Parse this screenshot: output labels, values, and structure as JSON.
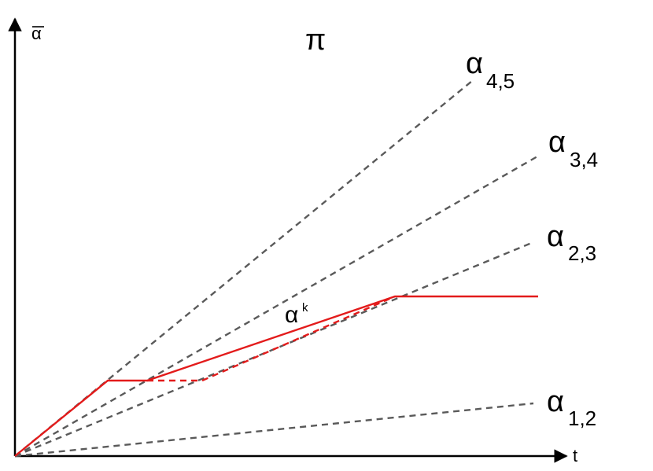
{
  "labels": {
    "y_axis": "α",
    "x_axis": "t",
    "title": "π",
    "alpha_symbol": "α",
    "alpha_k_sup": "k"
  },
  "rays": [
    {
      "sub": "4,5"
    },
    {
      "sub": "3,4"
    },
    {
      "sub": "2,3"
    },
    {
      "sub": "1,2"
    }
  ],
  "colors": {
    "axis": "#000000",
    "ray": "#5a5a5a",
    "path": "#e31b1b"
  }
}
